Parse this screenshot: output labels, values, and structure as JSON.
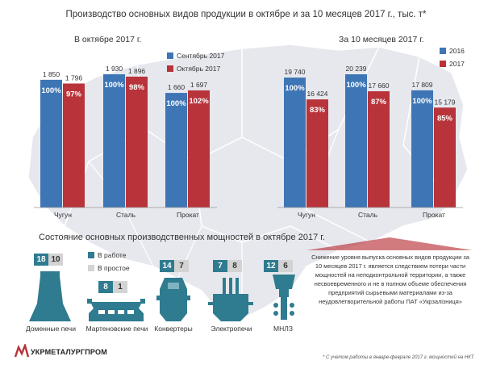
{
  "title": "Производство основных видов продукции в октябре и за 10 месяцев 2017 г., тыс. т*",
  "colors": {
    "blue": "#3e75b5",
    "red": "#b8343a",
    "teal": "#2f7b8f",
    "gray": "#d3d3d3",
    "map": "#e6e8ee"
  },
  "chart_data": [
    {
      "type": "bar",
      "subtitle": "В октябре 2017 г.",
      "categories": [
        "Чугун",
        "Сталь",
        "Прокат"
      ],
      "series": [
        {
          "name": "Сентябрь 2017",
          "values": [
            1850,
            1930,
            1660
          ],
          "pct_labels": [
            "100%",
            "100%",
            "100%"
          ],
          "value_labels": [
            "1 850",
            "1 930",
            "1 660"
          ]
        },
        {
          "name": "Октябрь 2017",
          "values": [
            1796,
            1896,
            1697
          ],
          "pct_labels": [
            "97%",
            "98%",
            "102%"
          ],
          "value_labels": [
            "1 796",
            "1 896",
            "1 697"
          ]
        }
      ],
      "legend": "top-right"
    },
    {
      "type": "bar",
      "subtitle": "За 10 месяцев 2017 г.",
      "categories": [
        "Чугун",
        "Сталь",
        "Прокат"
      ],
      "series": [
        {
          "name": "2016",
          "values": [
            19740,
            20239,
            17809
          ],
          "pct_labels": [
            "100%",
            "100%",
            "100%"
          ],
          "value_labels": [
            "19 740",
            "20 239",
            "17 809"
          ]
        },
        {
          "name": "2017",
          "values": [
            16424,
            17660,
            15179
          ],
          "pct_labels": [
            "83%",
            "87%",
            "85%"
          ],
          "value_labels": [
            "16 424",
            "17 660",
            "15 179"
          ]
        }
      ],
      "legend": "top-right"
    }
  ],
  "capacity": {
    "title": "Состояние основных производственных мощностей в октябре 2017 г.",
    "legend": {
      "working": "В работе",
      "idle": "В простое"
    },
    "units": [
      {
        "label": "Доменные печи",
        "working": "18",
        "idle": "10",
        "icon": "blast-furnace-icon"
      },
      {
        "label": "Мартеновские печи",
        "working": "8",
        "idle": "1",
        "icon": "open-hearth-furnace-icon"
      },
      {
        "label": "Конвертеры",
        "working": "14",
        "idle": "7",
        "icon": "converter-icon"
      },
      {
        "label": "Электропечи",
        "working": "7",
        "idle": "8",
        "icon": "electric-furnace-icon"
      },
      {
        "label": "МНЛЗ",
        "working": "12",
        "idle": "6",
        "icon": "continuous-caster-icon"
      }
    ]
  },
  "note": "Снижение уровня выпуска основных видов продукции за 10 месяцев 2017 г. является следствием потери части мощностей на неподконтрольной территории, а также несвоевременного и не в полном объеме обеспечения предприятий сырьевыми материалами из-за неудовлетворительной работы ПАТ «Укрзалізниця»",
  "footnote": "* С учетом работы в январе-феврале  2017 г. мощностей на НКТ",
  "logo": {
    "text": "УКРМЕТАЛУРГПРОМ",
    "icon": "logo-icon"
  }
}
